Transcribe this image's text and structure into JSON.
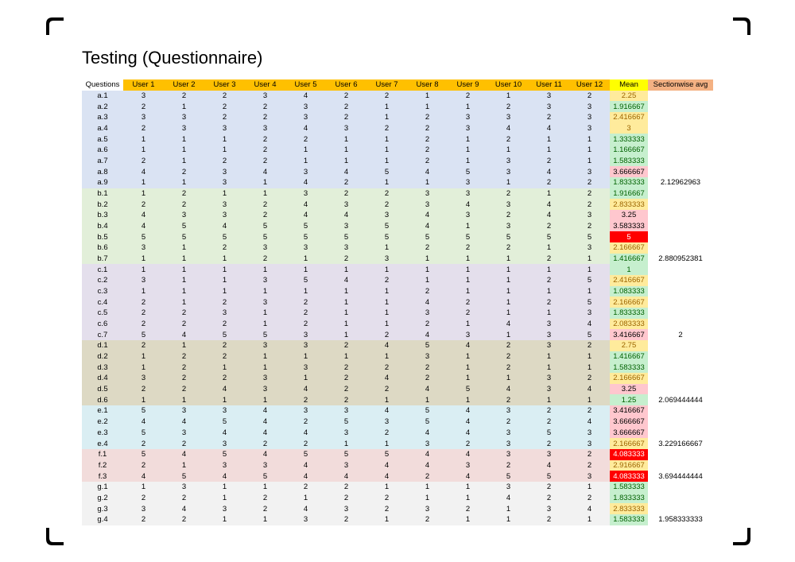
{
  "title": "Testing (Questionnaire)",
  "headers": [
    "Questions",
    "User 1",
    "User 2",
    "User 3",
    "User 4",
    "User 5",
    "User 6",
    "User 7",
    "User 8",
    "User 9",
    "User 10",
    "User 11",
    "User 12",
    "Mean",
    "Sectionwise avg"
  ],
  "colors": {
    "header_users": "#ffc000",
    "header_mean": "#ffff00",
    "header_avg": "#f4b183",
    "mean_green": "#c6efce",
    "mean_yellow": "#ffeb9c",
    "mean_pink": "#ffc7ce",
    "mean_red": "#ff0000"
  },
  "sections": [
    {
      "id": "a",
      "color": "#dae3f3",
      "avg": "2.12962963",
      "rows": [
        {
          "q": "a.1",
          "u": [
            "3",
            "2",
            "2",
            "3",
            "4",
            "2",
            "2",
            "1",
            "2",
            "1",
            "3",
            "2"
          ],
          "mean": "2.25",
          "mean_fill": "#ffeb9c",
          "mean_text": "#9c6500"
        },
        {
          "q": "a.2",
          "u": [
            "2",
            "1",
            "2",
            "2",
            "3",
            "2",
            "1",
            "1",
            "1",
            "2",
            "3",
            "3"
          ],
          "mean": "1.916667",
          "mean_fill": "#c6efce",
          "mean_text": "#006100"
        },
        {
          "q": "a.3",
          "u": [
            "3",
            "3",
            "2",
            "2",
            "3",
            "2",
            "1",
            "2",
            "3",
            "3",
            "2",
            "3"
          ],
          "mean": "2.416667",
          "mean_fill": "#ffeb9c",
          "mean_text": "#9c6500"
        },
        {
          "q": "a.4",
          "u": [
            "2",
            "3",
            "3",
            "3",
            "4",
            "3",
            "2",
            "2",
            "3",
            "4",
            "4",
            "3"
          ],
          "mean": "3",
          "mean_fill": "#ffeb9c",
          "mean_text": "#9c6500"
        },
        {
          "q": "a.5",
          "u": [
            "1",
            "1",
            "1",
            "2",
            "2",
            "1",
            "1",
            "2",
            "1",
            "2",
            "1",
            "1"
          ],
          "mean": "1.333333",
          "mean_fill": "#c6efce",
          "mean_text": "#006100"
        },
        {
          "q": "a.6",
          "u": [
            "1",
            "1",
            "1",
            "2",
            "1",
            "1",
            "1",
            "2",
            "1",
            "1",
            "1",
            "1"
          ],
          "mean": "1.166667",
          "mean_fill": "#c6efce",
          "mean_text": "#006100"
        },
        {
          "q": "a.7",
          "u": [
            "2",
            "1",
            "2",
            "2",
            "1",
            "1",
            "1",
            "2",
            "1",
            "3",
            "2",
            "1"
          ],
          "mean": "1.583333",
          "mean_fill": "#c6efce",
          "mean_text": "#006100"
        },
        {
          "q": "a.8",
          "u": [
            "4",
            "2",
            "3",
            "4",
            "3",
            "4",
            "5",
            "4",
            "5",
            "3",
            "4",
            "3"
          ],
          "mean": "3.666667",
          "mean_fill": "#ffc7ce",
          "mean_text": "#000000"
        },
        {
          "q": "a.9",
          "u": [
            "1",
            "1",
            "3",
            "1",
            "4",
            "2",
            "1",
            "1",
            "3",
            "1",
            "2",
            "2"
          ],
          "mean": "1.833333",
          "mean_fill": "#c6efce",
          "mean_text": "#006100"
        }
      ]
    },
    {
      "id": "b",
      "color": "#e2efd9",
      "avg": "2.880952381",
      "rows": [
        {
          "q": "b.1",
          "u": [
            "1",
            "2",
            "1",
            "1",
            "3",
            "2",
            "2",
            "3",
            "3",
            "2",
            "1",
            "2"
          ],
          "mean": "1.916667",
          "mean_fill": "#c6efce",
          "mean_text": "#006100"
        },
        {
          "q": "b.2",
          "u": [
            "2",
            "2",
            "3",
            "2",
            "4",
            "3",
            "2",
            "3",
            "4",
            "3",
            "4",
            "2"
          ],
          "mean": "2.833333",
          "mean_fill": "#ffeb9c",
          "mean_text": "#9c6500"
        },
        {
          "q": "b.3",
          "u": [
            "4",
            "3",
            "3",
            "2",
            "4",
            "4",
            "3",
            "4",
            "3",
            "2",
            "4",
            "3"
          ],
          "mean": "3.25",
          "mean_fill": "#ffc7ce",
          "mean_text": "#000000"
        },
        {
          "q": "b.4",
          "u": [
            "4",
            "5",
            "4",
            "5",
            "5",
            "3",
            "5",
            "4",
            "1",
            "3",
            "2",
            "2"
          ],
          "mean": "3.583333",
          "mean_fill": "#ffc7ce",
          "mean_text": "#000000"
        },
        {
          "q": "b.5",
          "u": [
            "5",
            "5",
            "5",
            "5",
            "5",
            "5",
            "5",
            "5",
            "5",
            "5",
            "5",
            "5"
          ],
          "mean": "5",
          "mean_fill": "#ff0000",
          "mean_text": "#ffffff"
        },
        {
          "q": "b.6",
          "u": [
            "3",
            "1",
            "2",
            "3",
            "3",
            "3",
            "1",
            "2",
            "2",
            "2",
            "1",
            "3"
          ],
          "mean": "2.166667",
          "mean_fill": "#ffeb9c",
          "mean_text": "#9c6500"
        },
        {
          "q": "b.7",
          "u": [
            "1",
            "1",
            "1",
            "2",
            "1",
            "2",
            "3",
            "1",
            "1",
            "1",
            "2",
            "1"
          ],
          "mean": "1.416667",
          "mean_fill": "#c6efce",
          "mean_text": "#006100"
        }
      ]
    },
    {
      "id": "c",
      "color": "#e4dfec",
      "avg": "2",
      "rows": [
        {
          "q": "c.1",
          "u": [
            "1",
            "1",
            "1",
            "1",
            "1",
            "1",
            "1",
            "1",
            "1",
            "1",
            "1",
            "1"
          ],
          "mean": "1",
          "mean_fill": "#c6efce",
          "mean_text": "#006100"
        },
        {
          "q": "c.2",
          "u": [
            "3",
            "1",
            "1",
            "3",
            "5",
            "4",
            "2",
            "1",
            "1",
            "1",
            "2",
            "5"
          ],
          "mean": "2.416667",
          "mean_fill": "#ffeb9c",
          "mean_text": "#9c6500"
        },
        {
          "q": "c.3",
          "u": [
            "1",
            "1",
            "1",
            "1",
            "1",
            "1",
            "1",
            "2",
            "1",
            "1",
            "1",
            "1"
          ],
          "mean": "1.083333",
          "mean_fill": "#c6efce",
          "mean_text": "#006100"
        },
        {
          "q": "c.4",
          "u": [
            "2",
            "1",
            "2",
            "3",
            "2",
            "1",
            "1",
            "4",
            "2",
            "1",
            "2",
            "5"
          ],
          "mean": "2.166667",
          "mean_fill": "#ffeb9c",
          "mean_text": "#9c6500"
        },
        {
          "q": "c.5",
          "u": [
            "2",
            "2",
            "3",
            "1",
            "2",
            "1",
            "1",
            "3",
            "2",
            "1",
            "1",
            "3"
          ],
          "mean": "1.833333",
          "mean_fill": "#c6efce",
          "mean_text": "#006100"
        },
        {
          "q": "c.6",
          "u": [
            "2",
            "2",
            "2",
            "1",
            "2",
            "1",
            "1",
            "2",
            "1",
            "4",
            "3",
            "4"
          ],
          "mean": "2.083333",
          "mean_fill": "#ffeb9c",
          "mean_text": "#9c6500"
        },
        {
          "q": "c.7",
          "u": [
            "5",
            "4",
            "5",
            "5",
            "3",
            "1",
            "2",
            "4",
            "3",
            "1",
            "3",
            "5"
          ],
          "mean": "3.416667",
          "mean_fill": "#ffc7ce",
          "mean_text": "#000000"
        }
      ]
    },
    {
      "id": "d",
      "color": "#ddd9c4",
      "avg": "2.069444444",
      "rows": [
        {
          "q": "d.1",
          "u": [
            "2",
            "1",
            "2",
            "3",
            "3",
            "2",
            "4",
            "5",
            "4",
            "2",
            "3",
            "2"
          ],
          "mean": "2.75",
          "mean_fill": "#ffeb9c",
          "mean_text": "#9c6500"
        },
        {
          "q": "d.2",
          "u": [
            "1",
            "2",
            "2",
            "1",
            "1",
            "1",
            "1",
            "3",
            "1",
            "2",
            "1",
            "1"
          ],
          "mean": "1.416667",
          "mean_fill": "#c6efce",
          "mean_text": "#006100"
        },
        {
          "q": "d.3",
          "u": [
            "1",
            "2",
            "1",
            "1",
            "3",
            "2",
            "2",
            "2",
            "1",
            "2",
            "1",
            "1"
          ],
          "mean": "1.583333",
          "mean_fill": "#c6efce",
          "mean_text": "#006100"
        },
        {
          "q": "d.4",
          "u": [
            "3",
            "2",
            "2",
            "3",
            "1",
            "2",
            "4",
            "2",
            "1",
            "1",
            "3",
            "2"
          ],
          "mean": "2.166667",
          "mean_fill": "#ffeb9c",
          "mean_text": "#9c6500"
        },
        {
          "q": "d.5",
          "u": [
            "2",
            "2",
            "4",
            "3",
            "4",
            "2",
            "2",
            "4",
            "5",
            "4",
            "3",
            "4"
          ],
          "mean": "3.25",
          "mean_fill": "#ffc7ce",
          "mean_text": "#000000"
        },
        {
          "q": "d.6",
          "u": [
            "1",
            "1",
            "1",
            "1",
            "2",
            "2",
            "1",
            "1",
            "1",
            "2",
            "1",
            "1"
          ],
          "mean": "1.25",
          "mean_fill": "#c6efce",
          "mean_text": "#006100"
        }
      ]
    },
    {
      "id": "e",
      "color": "#daeef3",
      "avg": "3.229166667",
      "rows": [
        {
          "q": "e.1",
          "u": [
            "5",
            "3",
            "3",
            "4",
            "3",
            "3",
            "4",
            "5",
            "4",
            "3",
            "2",
            "2"
          ],
          "mean": "3.416667",
          "mean_fill": "#ffc7ce",
          "mean_text": "#000000"
        },
        {
          "q": "e.2",
          "u": [
            "4",
            "4",
            "5",
            "4",
            "2",
            "5",
            "3",
            "5",
            "4",
            "2",
            "2",
            "4"
          ],
          "mean": "3.666667",
          "mean_fill": "#ffc7ce",
          "mean_text": "#000000"
        },
        {
          "q": "e.3",
          "u": [
            "5",
            "3",
            "4",
            "4",
            "4",
            "3",
            "2",
            "4",
            "4",
            "3",
            "5",
            "3"
          ],
          "mean": "3.666667",
          "mean_fill": "#ffc7ce",
          "mean_text": "#000000"
        },
        {
          "q": "e.4",
          "u": [
            "2",
            "2",
            "3",
            "2",
            "2",
            "1",
            "1",
            "3",
            "2",
            "3",
            "2",
            "3"
          ],
          "mean": "2.166667",
          "mean_fill": "#ffeb9c",
          "mean_text": "#9c6500"
        }
      ]
    },
    {
      "id": "f",
      "color": "#f2dcdb",
      "avg": "3.694444444",
      "rows": [
        {
          "q": "f.1",
          "u": [
            "5",
            "4",
            "5",
            "4",
            "5",
            "5",
            "5",
            "4",
            "4",
            "3",
            "3",
            "2"
          ],
          "mean": "4.083333",
          "mean_fill": "#ff0000",
          "mean_text": "#ffffff"
        },
        {
          "q": "f.2",
          "u": [
            "2",
            "1",
            "3",
            "3",
            "4",
            "3",
            "4",
            "4",
            "3",
            "2",
            "4",
            "2"
          ],
          "mean": "2.916667",
          "mean_fill": "#ffeb9c",
          "mean_text": "#9c6500"
        },
        {
          "q": "f.3",
          "u": [
            "4",
            "5",
            "4",
            "5",
            "4",
            "4",
            "4",
            "2",
            "4",
            "5",
            "5",
            "3"
          ],
          "mean": "4.083333",
          "mean_fill": "#ff0000",
          "mean_text": "#ffffff"
        }
      ]
    },
    {
      "id": "g",
      "color": "#f2f2f2",
      "avg": "1.958333333",
      "rows": [
        {
          "q": "g.1",
          "u": [
            "1",
            "3",
            "1",
            "1",
            "2",
            "2",
            "1",
            "1",
            "1",
            "3",
            "2",
            "1"
          ],
          "mean": "1.583333",
          "mean_fill": "#c6efce",
          "mean_text": "#006100"
        },
        {
          "q": "g.2",
          "u": [
            "2",
            "2",
            "1",
            "2",
            "1",
            "2",
            "2",
            "1",
            "1",
            "4",
            "2",
            "2"
          ],
          "mean": "1.833333",
          "mean_fill": "#c6efce",
          "mean_text": "#006100"
        },
        {
          "q": "g.3",
          "u": [
            "3",
            "4",
            "3",
            "2",
            "4",
            "3",
            "2",
            "3",
            "2",
            "1",
            "3",
            "4"
          ],
          "mean": "2.833333",
          "mean_fill": "#ffeb9c",
          "mean_text": "#9c6500"
        },
        {
          "q": "g.4",
          "u": [
            "2",
            "2",
            "1",
            "1",
            "3",
            "2",
            "1",
            "2",
            "1",
            "1",
            "2",
            "1"
          ],
          "mean": "1.583333",
          "mean_fill": "#c6efce",
          "mean_text": "#006100"
        }
      ]
    }
  ]
}
